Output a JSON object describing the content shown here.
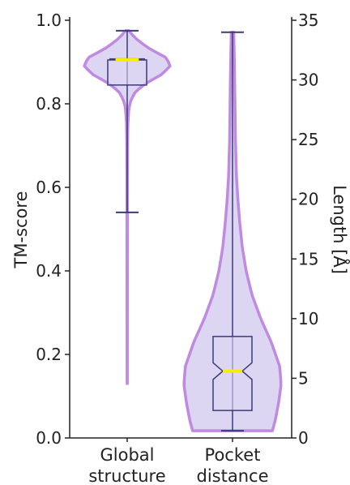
{
  "chart_data": {
    "type": "violin",
    "categories": [
      "Global\nstructure",
      "Pocket\ndistance"
    ],
    "left_axis": {
      "label": "TM-score",
      "ylim": [
        0,
        1.0
      ],
      "ticks": [
        "0.0",
        "0.2",
        "0.4",
        "0.6",
        "0.8",
        "1.0"
      ],
      "tick_values": [
        0,
        0.2,
        0.4,
        0.6,
        0.8,
        1.0
      ]
    },
    "right_axis": {
      "label": "Length [Å]",
      "ylim": [
        0,
        35
      ],
      "ticks": [
        "0",
        "5",
        "10",
        "15",
        "20",
        "25",
        "30",
        "35"
      ],
      "tick_values": [
        0,
        5,
        10,
        15,
        20,
        25,
        30,
        35
      ]
    },
    "series": [
      {
        "category": "Global\nstructure",
        "axis": "left",
        "min": 0.54,
        "q1": 0.845,
        "median": 0.905,
        "q3": 0.905,
        "max": 0.975,
        "kde_extent": [
          0.13,
          0.975
        ],
        "density_profile": [
          [
            0.13,
            0.003
          ],
          [
            0.3,
            0.004
          ],
          [
            0.5,
            0.006
          ],
          [
            0.6,
            0.007
          ],
          [
            0.7,
            0.01
          ],
          [
            0.75,
            0.015
          ],
          [
            0.79,
            0.04
          ],
          [
            0.81,
            0.09
          ],
          [
            0.83,
            0.2
          ],
          [
            0.85,
            0.45
          ],
          [
            0.87,
            0.8
          ],
          [
            0.89,
            1.0
          ],
          [
            0.91,
            0.92
          ],
          [
            0.93,
            0.55
          ],
          [
            0.95,
            0.27
          ],
          [
            0.965,
            0.12
          ],
          [
            0.975,
            0.04
          ]
        ]
      },
      {
        "category": "Pocket\ndistance",
        "axis": "right",
        "min": 0.6,
        "q1": 2.3,
        "median": 5.6,
        "q3": 8.5,
        "max": 34.0,
        "notch": [
          4.9,
          6.3
        ],
        "kde_extent": [
          0.6,
          34.0
        ],
        "density_profile": [
          [
            0.6,
            0.82
          ],
          [
            1.5,
            0.88
          ],
          [
            3.0,
            0.95
          ],
          [
            4.5,
            1.0
          ],
          [
            6.0,
            0.97
          ],
          [
            8.0,
            0.8
          ],
          [
            10.0,
            0.58
          ],
          [
            12.0,
            0.4
          ],
          [
            14.0,
            0.28
          ],
          [
            16.0,
            0.2
          ],
          [
            18.0,
            0.15
          ],
          [
            20.0,
            0.11
          ],
          [
            22.0,
            0.08
          ],
          [
            25.0,
            0.06
          ],
          [
            28.0,
            0.05
          ],
          [
            31.0,
            0.04
          ],
          [
            34.0,
            0.025
          ]
        ]
      }
    ],
    "colors": {
      "violin_fill": "#dcd6f2",
      "violin_edge": "#c08ae0",
      "box_line": "#3d3a78",
      "median": "#f5ee00",
      "axis": "#222222"
    }
  }
}
